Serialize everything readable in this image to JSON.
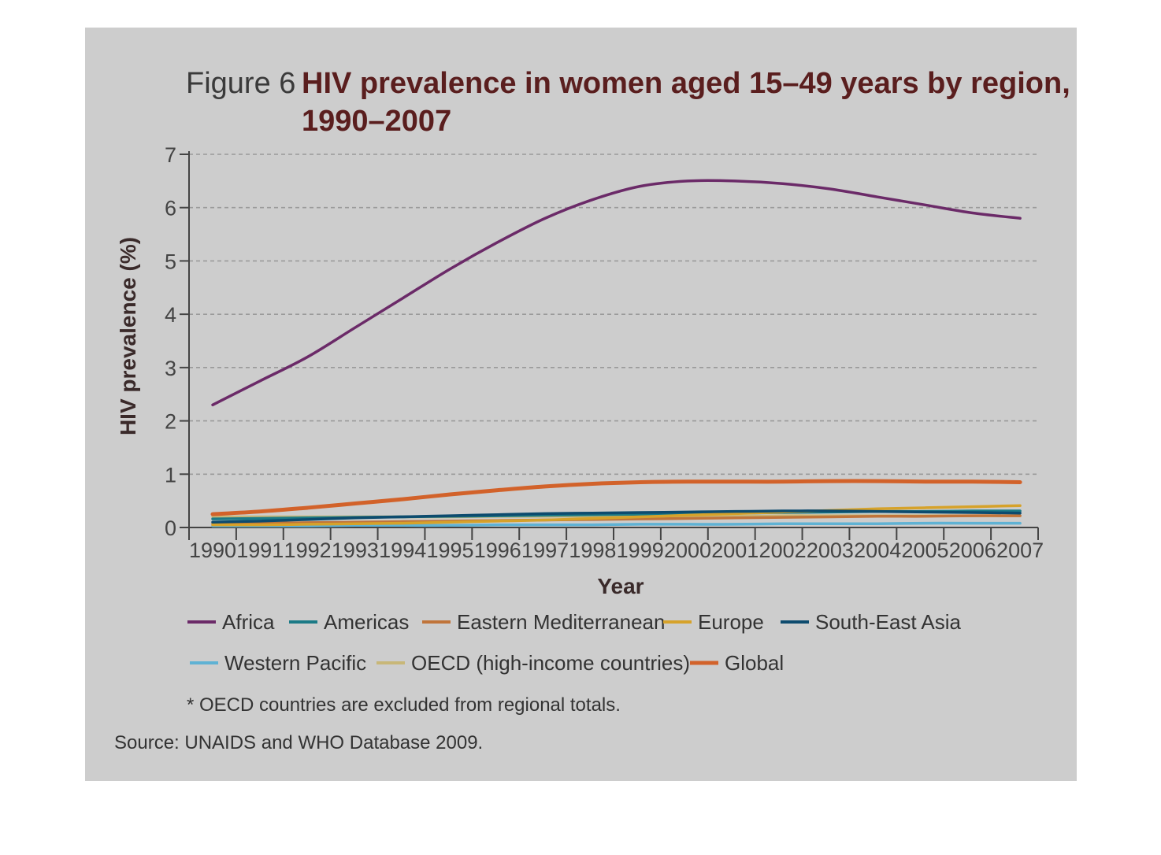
{
  "chart_data": {
    "type": "line",
    "figure_label": "Figure 6",
    "title": "HIV prevalence in women aged 15–49 years by region,",
    "title_line2": "1990–2007",
    "xlabel": "Year",
    "ylabel": "HIV prevalence (%)",
    "ylim": [
      0,
      7
    ],
    "yticks": [
      0,
      1,
      2,
      3,
      4,
      5,
      6,
      7
    ],
    "grid": true,
    "legend_position": "bottom",
    "x": [
      "1990",
      "1991",
      "1992",
      "1993",
      "1994",
      "1995",
      "1996",
      "1997",
      "1998",
      "1999",
      "2000",
      "2001",
      "2002",
      "2003",
      "2004",
      "2005",
      "2006",
      "2007"
    ],
    "series": [
      {
        "name": "Africa",
        "color": "#6b2a68",
        "values": [
          2.3,
          2.75,
          3.2,
          3.75,
          4.3,
          4.85,
          5.35,
          5.8,
          6.15,
          6.4,
          6.5,
          6.5,
          6.45,
          6.35,
          6.2,
          6.05,
          5.9,
          5.8
        ]
      },
      {
        "name": "Americas",
        "color": "#1b7a86",
        "values": [
          0.16,
          0.17,
          0.18,
          0.19,
          0.2,
          0.21,
          0.22,
          0.23,
          0.24,
          0.25,
          0.26,
          0.27,
          0.28,
          0.29,
          0.3,
          0.3,
          0.31,
          0.31
        ]
      },
      {
        "name": "Eastern Mediterranean",
        "color": "#c0743a",
        "values": [
          0.07,
          0.08,
          0.09,
          0.1,
          0.11,
          0.12,
          0.13,
          0.14,
          0.15,
          0.16,
          0.17,
          0.18,
          0.19,
          0.2,
          0.21,
          0.21,
          0.22,
          0.22
        ]
      },
      {
        "name": "Europe",
        "color": "#d6a22a",
        "values": [
          0.05,
          0.05,
          0.06,
          0.07,
          0.08,
          0.1,
          0.12,
          0.14,
          0.17,
          0.2,
          0.23,
          0.26,
          0.29,
          0.32,
          0.35,
          0.37,
          0.39,
          0.41
        ]
      },
      {
        "name": "South-East Asia",
        "color": "#0d4b6e",
        "values": [
          0.1,
          0.12,
          0.15,
          0.18,
          0.2,
          0.22,
          0.24,
          0.26,
          0.27,
          0.28,
          0.29,
          0.3,
          0.31,
          0.31,
          0.3,
          0.29,
          0.28,
          0.27
        ]
      },
      {
        "name": "Western Pacific",
        "color": "#5fb2d4",
        "values": [
          0.03,
          0.03,
          0.03,
          0.04,
          0.04,
          0.04,
          0.05,
          0.05,
          0.05,
          0.06,
          0.06,
          0.06,
          0.07,
          0.07,
          0.07,
          0.08,
          0.08,
          0.08
        ]
      },
      {
        "name": "OECD (high-income countries)",
        "color": "#c8b778",
        "values": [
          0.2,
          0.2,
          0.2,
          0.2,
          0.2,
          0.2,
          0.21,
          0.21,
          0.21,
          0.21,
          0.21,
          0.21,
          0.22,
          0.22,
          0.22,
          0.22,
          0.22,
          0.22
        ]
      },
      {
        "name": "Global",
        "color": "#d2622a",
        "values": [
          0.25,
          0.3,
          0.37,
          0.45,
          0.53,
          0.62,
          0.7,
          0.77,
          0.82,
          0.85,
          0.86,
          0.86,
          0.86,
          0.87,
          0.87,
          0.86,
          0.86,
          0.85
        ]
      }
    ],
    "footnote": "* OECD countries are excluded from regional totals.",
    "source": "Source: UNAIDS and WHO Database 2009."
  }
}
